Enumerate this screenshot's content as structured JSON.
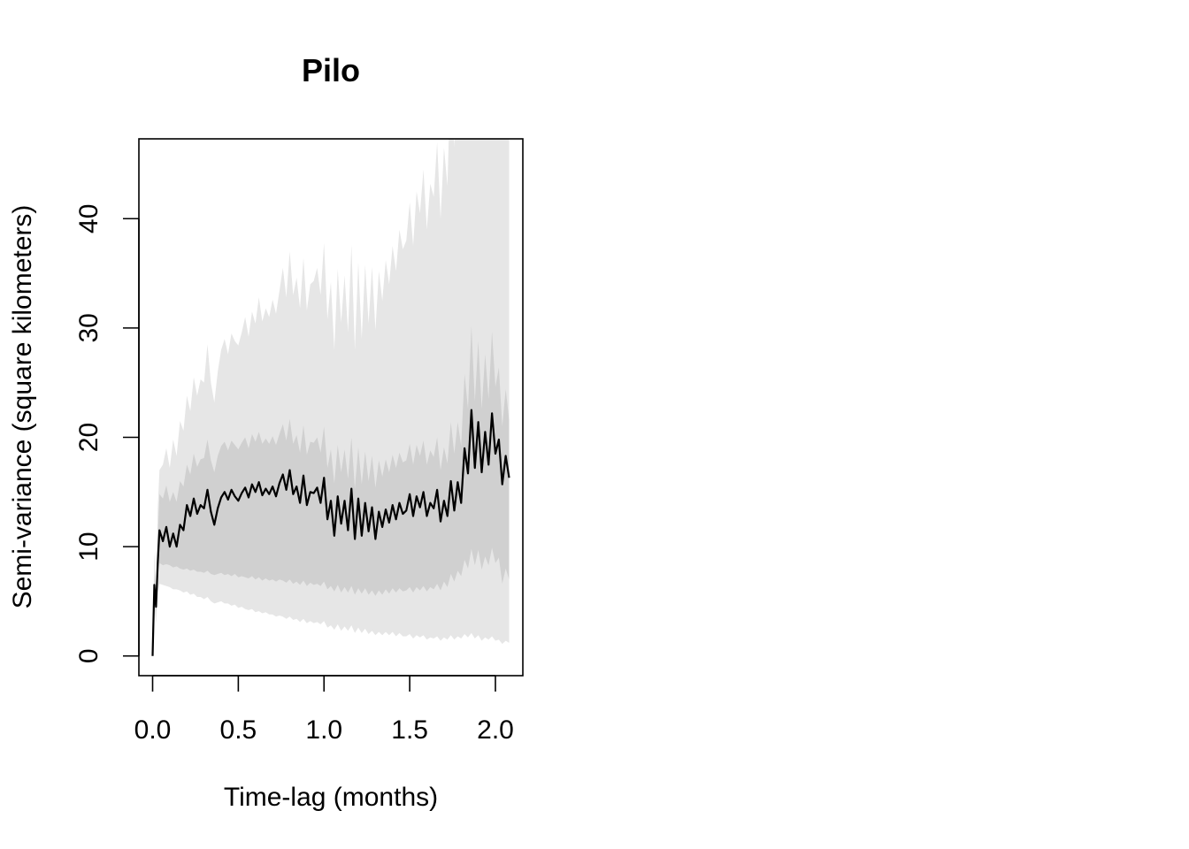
{
  "chart_data": {
    "type": "line",
    "title": "Pilo",
    "xlabel": "Time-lag (months)",
    "ylabel": "Semi-variance (square kilometers)",
    "xlim": [
      -0.08,
      2.16
    ],
    "ylim": [
      -1.8,
      47.3
    ],
    "x_ticks": [
      0.0,
      0.5,
      1.0,
      1.5,
      2.0
    ],
    "x_tick_labels": [
      "0.0",
      "0.5",
      "1.0",
      "1.5",
      "2.0"
    ],
    "y_ticks": [
      0,
      10,
      20,
      30,
      40
    ],
    "y_tick_labels": [
      "0",
      "10",
      "20",
      "30",
      "40"
    ],
    "grid": false,
    "colors": {
      "outer_band": "#e6e6e6",
      "inner_band": "#d0d0d0",
      "line": "#000000",
      "axes": "#000000"
    },
    "series": [
      {
        "name": "semi-variance",
        "x": [
          0.0,
          0.01,
          0.02,
          0.03,
          0.04,
          0.06,
          0.08,
          0.1,
          0.12,
          0.14,
          0.16,
          0.18,
          0.2,
          0.22,
          0.24,
          0.26,
          0.28,
          0.3,
          0.32,
          0.34,
          0.36,
          0.38,
          0.4,
          0.42,
          0.44,
          0.46,
          0.48,
          0.5,
          0.52,
          0.54,
          0.56,
          0.58,
          0.6,
          0.62,
          0.64,
          0.66,
          0.68,
          0.7,
          0.72,
          0.74,
          0.76,
          0.78,
          0.8,
          0.82,
          0.84,
          0.86,
          0.88,
          0.9,
          0.92,
          0.94,
          0.96,
          0.98,
          1.0,
          1.02,
          1.04,
          1.06,
          1.08,
          1.1,
          1.12,
          1.14,
          1.16,
          1.18,
          1.2,
          1.22,
          1.24,
          1.26,
          1.28,
          1.3,
          1.32,
          1.34,
          1.36,
          1.38,
          1.4,
          1.42,
          1.44,
          1.46,
          1.48,
          1.5,
          1.52,
          1.54,
          1.56,
          1.58,
          1.6,
          1.62,
          1.64,
          1.66,
          1.68,
          1.7,
          1.72,
          1.74,
          1.76,
          1.78,
          1.8,
          1.82,
          1.84,
          1.86,
          1.88,
          1.9,
          1.92,
          1.94,
          1.96,
          1.98,
          2.0,
          2.02,
          2.04,
          2.06,
          2.08
        ],
        "values": [
          0.0,
          6.5,
          4.5,
          8.5,
          11.5,
          10.5,
          11.8,
          10.0,
          11.2,
          10.0,
          12.0,
          11.5,
          13.8,
          12.8,
          14.4,
          13.0,
          13.8,
          13.5,
          15.2,
          13.2,
          12.0,
          13.5,
          14.5,
          15.0,
          14.3,
          15.2,
          14.6,
          14.2,
          14.9,
          15.4,
          14.5,
          15.7,
          15.0,
          15.9,
          14.7,
          15.3,
          14.8,
          15.5,
          14.6,
          15.8,
          16.6,
          15.2,
          17.0,
          14.8,
          15.5,
          14.0,
          16.5,
          13.8,
          15.0,
          14.9,
          15.4,
          14.0,
          16.3,
          12.5,
          14.2,
          11.0,
          14.6,
          12.1,
          14.2,
          11.5,
          15.3,
          10.7,
          14.4,
          11.0,
          14.0,
          11.4,
          13.6,
          10.7,
          13.2,
          11.8,
          13.4,
          12.2,
          13.8,
          12.5,
          14.0,
          13.0,
          13.3,
          14.8,
          12.8,
          14.6,
          13.6,
          15.0,
          12.8,
          14.0,
          13.5,
          15.2,
          12.3,
          14.2,
          12.8,
          16.0,
          13.3,
          15.9,
          14.0,
          19.0,
          16.7,
          22.5,
          17.2,
          21.4,
          16.8,
          20.5,
          17.5,
          22.2,
          18.5,
          19.8,
          15.7,
          18.3,
          16.3
        ],
        "inner_band": {
          "lower": [
            0.0,
            5.5,
            4.0,
            7.2,
            8.5,
            8.3,
            8.4,
            8.3,
            8.1,
            8.2,
            8.0,
            7.9,
            8.0,
            7.8,
            7.9,
            7.7,
            7.7,
            7.6,
            7.8,
            7.5,
            7.4,
            7.5,
            7.6,
            7.4,
            7.5,
            7.3,
            7.5,
            7.2,
            7.3,
            7.2,
            7.1,
            7.3,
            7.0,
            7.2,
            6.9,
            7.1,
            6.9,
            7.0,
            6.8,
            7.0,
            6.9,
            6.7,
            7.0,
            6.6,
            6.8,
            6.5,
            6.9,
            6.4,
            6.7,
            6.5,
            6.6,
            6.4,
            6.8,
            6.1,
            6.4,
            5.9,
            6.5,
            5.8,
            6.3,
            5.8,
            6.4,
            5.6,
            6.2,
            5.7,
            6.2,
            5.6,
            6.0,
            5.5,
            6.0,
            5.6,
            6.1,
            5.7,
            6.2,
            5.8,
            6.2,
            5.9,
            6.0,
            6.3,
            5.8,
            6.3,
            6.0,
            6.4,
            5.9,
            6.3,
            6.1,
            6.6,
            6.0,
            6.8,
            6.3,
            7.5,
            6.8,
            7.8,
            7.3,
            8.8,
            8.0,
            9.8,
            8.3,
            9.7,
            7.9,
            9.1,
            8.3,
            9.9,
            8.5,
            9.0,
            6.6,
            8.0,
            7.0
          ],
          "upper": [
            0.0,
            7.5,
            5.0,
            10.8,
            14.8,
            14.4,
            15.6,
            14.1,
            15.0,
            14.1,
            16.0,
            15.5,
            17.5,
            16.6,
            18.5,
            17.3,
            18.0,
            18.1,
            19.8,
            17.9,
            16.8,
            18.3,
            19.2,
            19.6,
            18.8,
            19.7,
            19.3,
            18.9,
            19.5,
            20.0,
            19.0,
            20.3,
            19.6,
            20.5,
            19.4,
            19.9,
            19.4,
            20.1,
            19.3,
            20.3,
            21.2,
            19.7,
            21.7,
            19.4,
            20.2,
            18.6,
            21.1,
            18.4,
            19.6,
            19.5,
            20.0,
            18.6,
            21.0,
            17.2,
            18.9,
            15.8,
            19.3,
            16.8,
            18.9,
            16.2,
            20.0,
            15.3,
            19.1,
            15.7,
            18.7,
            16.0,
            18.3,
            15.4,
            17.9,
            16.4,
            18.0,
            16.8,
            18.4,
            17.2,
            18.6,
            17.7,
            17.9,
            19.4,
            17.5,
            19.3,
            18.3,
            19.7,
            17.5,
            18.8,
            18.2,
            20.0,
            17.0,
            19.1,
            17.6,
            21.4,
            18.5,
            21.4,
            19.2,
            25.8,
            22.6,
            30.2,
            23.3,
            28.8,
            22.6,
            27.6,
            23.5,
            29.7,
            24.6,
            26.4,
            21.0,
            24.4,
            21.6
          ]
        },
        "outer_band": {
          "lower": [
            0.0,
            4.5,
            3.0,
            5.8,
            6.6,
            6.5,
            6.4,
            6.3,
            6.1,
            6.1,
            6.0,
            5.8,
            5.9,
            5.6,
            5.7,
            5.4,
            5.4,
            5.2,
            5.4,
            5.0,
            4.8,
            4.9,
            5.0,
            4.8,
            4.8,
            4.6,
            4.7,
            4.4,
            4.5,
            4.3,
            4.2,
            4.3,
            4.0,
            4.1,
            3.9,
            4.0,
            3.8,
            3.8,
            3.6,
            3.7,
            3.6,
            3.4,
            3.6,
            3.3,
            3.4,
            3.1,
            3.4,
            3.0,
            3.2,
            3.0,
            3.1,
            2.9,
            3.2,
            2.6,
            2.8,
            2.4,
            2.9,
            2.3,
            2.7,
            2.3,
            2.8,
            2.1,
            2.6,
            2.1,
            2.5,
            2.0,
            2.3,
            1.9,
            2.2,
            1.9,
            2.2,
            1.9,
            2.2,
            1.8,
            2.1,
            1.8,
            1.8,
            2.0,
            1.6,
            1.9,
            1.7,
            1.9,
            1.5,
            1.7,
            1.6,
            1.8,
            1.4,
            1.7,
            1.5,
            1.9,
            1.5,
            1.8,
            1.6,
            2.0,
            1.7,
            2.1,
            1.6,
            1.9,
            1.4,
            1.7,
            1.5,
            1.8,
            1.4,
            1.5,
            1.1,
            1.4,
            1.2
          ],
          "upper": [
            0.0,
            9.5,
            6.5,
            13.5,
            17.0,
            17.5,
            19.0,
            17.2,
            19.8,
            18.3,
            21.5,
            20.6,
            23.8,
            22.4,
            25.5,
            23.8,
            25.3,
            25.0,
            28.5,
            25.0,
            23.2,
            26.0,
            28.0,
            29.0,
            27.6,
            29.5,
            28.8,
            28.4,
            29.6,
            31.0,
            29.2,
            31.5,
            30.4,
            32.8,
            30.6,
            31.8,
            31.0,
            32.6,
            31.3,
            33.4,
            35.5,
            32.8,
            37.0,
            33.0,
            34.6,
            31.8,
            36.4,
            31.6,
            34.0,
            34.3,
            35.5,
            33.0,
            37.8,
            30.8,
            34.2,
            28.0,
            35.4,
            30.5,
            34.8,
            29.6,
            37.6,
            28.0,
            36.0,
            29.0,
            35.8,
            30.4,
            35.6,
            29.8,
            35.2,
            32.5,
            36.2,
            34.0,
            37.5,
            35.2,
            39.0,
            37.2,
            38.0,
            41.5,
            37.5,
            42.5,
            40.5,
            44.5,
            39.0,
            43.2,
            42.0,
            47.0,
            40.0,
            46.5,
            43.0,
            54.0,
            46.5,
            56.0,
            50.0,
            70.0,
            62.0,
            85.0,
            65.0,
            82.0,
            63.0,
            80.0,
            68.0,
            90.0,
            75.0,
            82.0,
            65.0,
            78.0,
            70.0
          ]
        }
      }
    ]
  }
}
